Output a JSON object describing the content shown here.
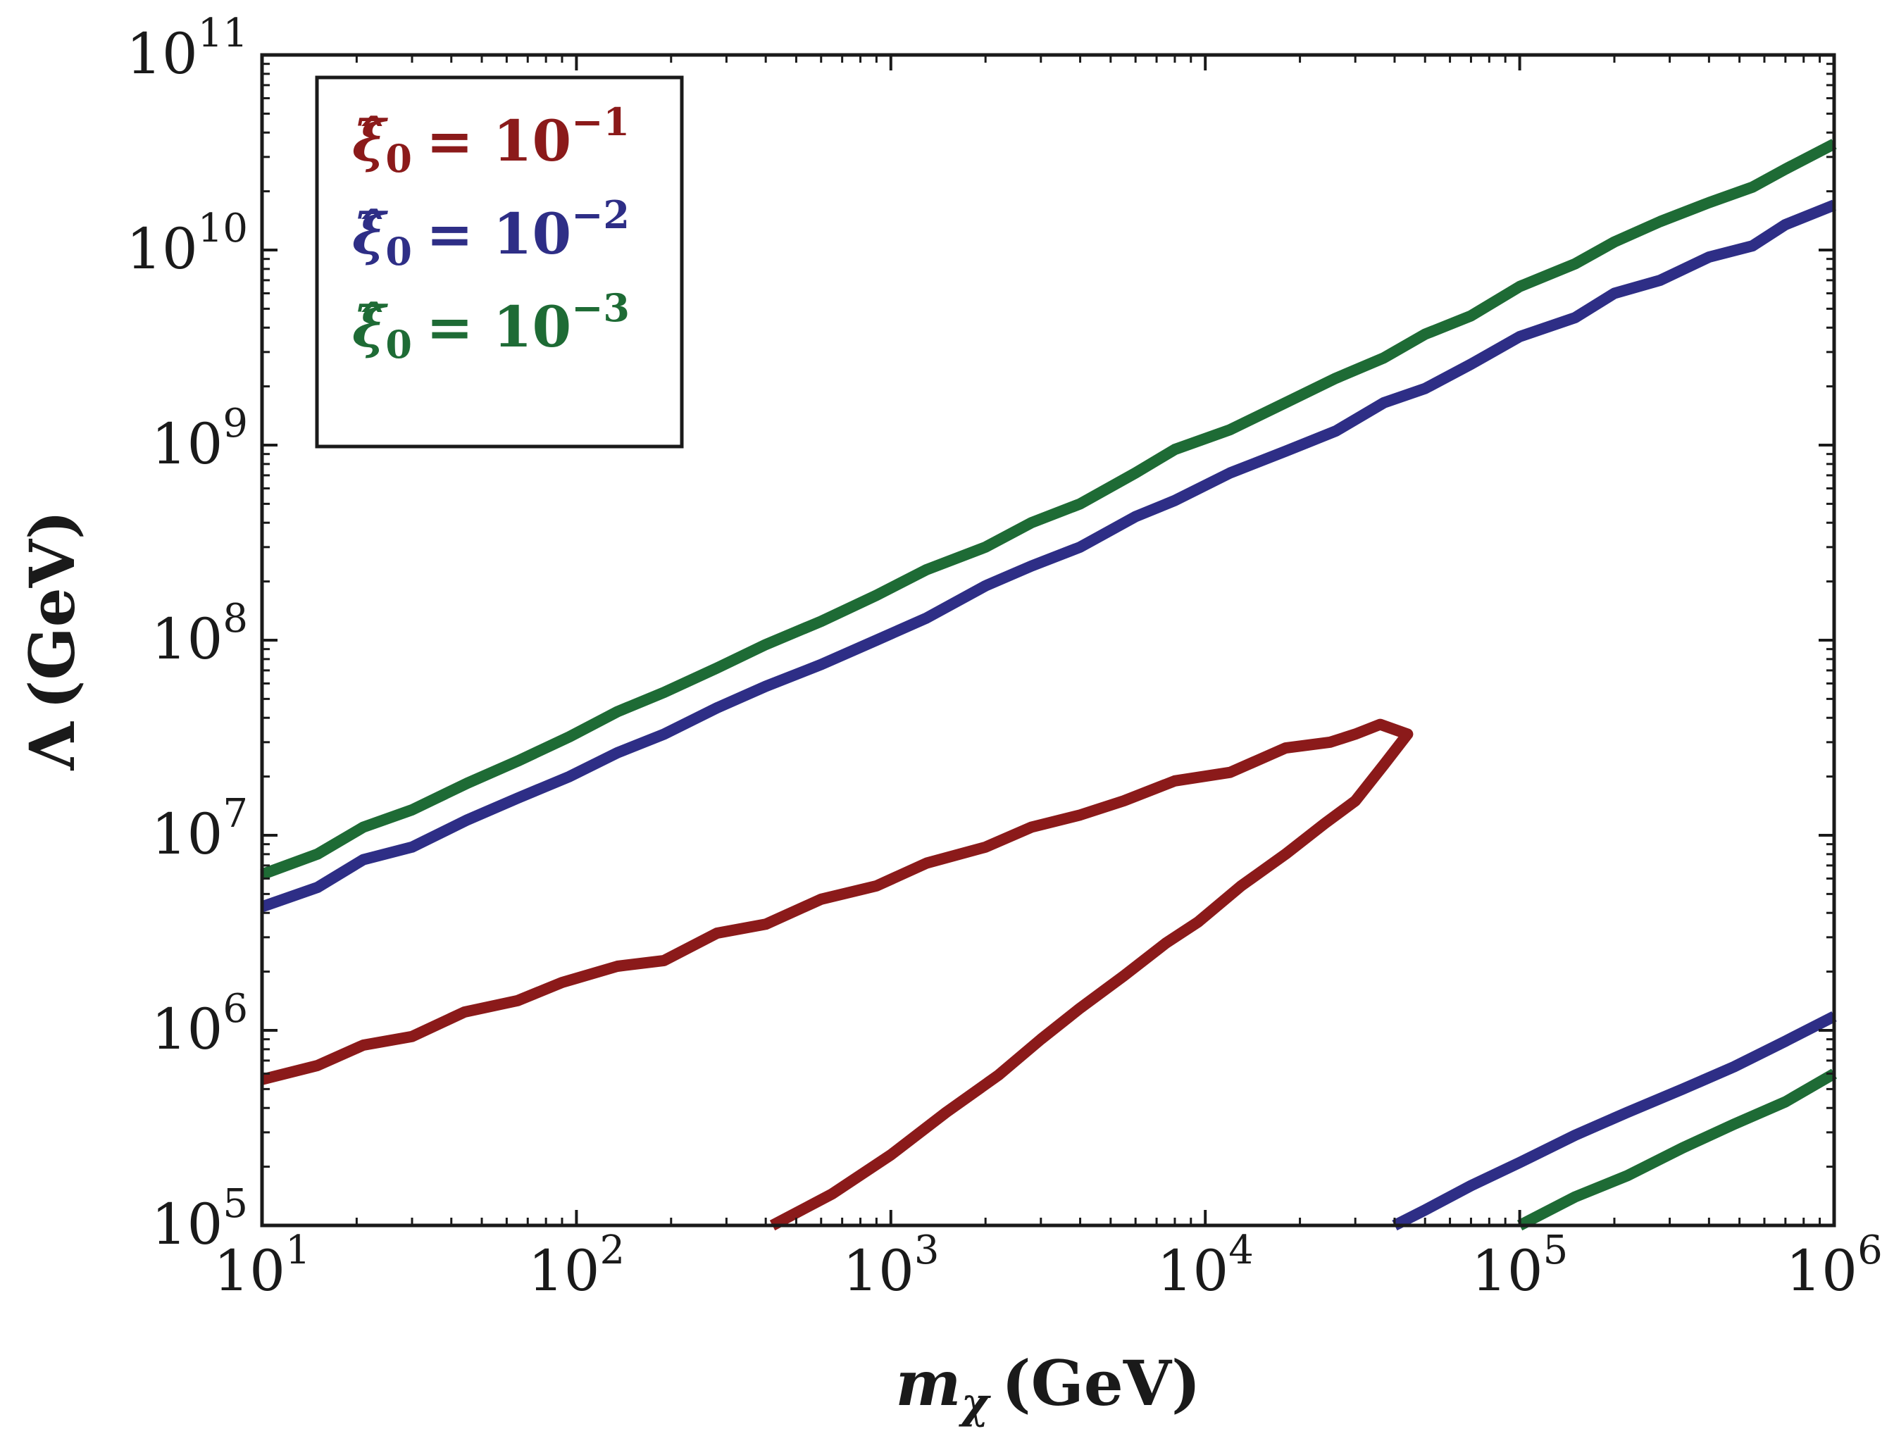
{
  "chart_data": {
    "type": "line",
    "xscale": "log",
    "yscale": "log",
    "xlim": [
      10,
      1000000
    ],
    "ylim": [
      100000,
      100000000000
    ],
    "xlabel": {
      "symbol": "m",
      "subscript": "χ",
      "unit": "(GeV)"
    },
    "ylabel": {
      "symbol": "Λ",
      "unit": "(GeV)"
    },
    "x_ticks": [
      {
        "value": 10,
        "base": "10",
        "exp": "1"
      },
      {
        "value": 100,
        "base": "10",
        "exp": "2"
      },
      {
        "value": 1000,
        "base": "10",
        "exp": "3"
      },
      {
        "value": 10000,
        "base": "10",
        "exp": "4"
      },
      {
        "value": 100000,
        "base": "10",
        "exp": "5"
      },
      {
        "value": 1000000,
        "base": "10",
        "exp": "6"
      }
    ],
    "y_ticks": [
      {
        "value": 100000,
        "base": "10",
        "exp": "5"
      },
      {
        "value": 1000000,
        "base": "10",
        "exp": "6"
      },
      {
        "value": 10000000,
        "base": "10",
        "exp": "7"
      },
      {
        "value": 100000000,
        "base": "10",
        "exp": "8"
      },
      {
        "value": 1000000000,
        "base": "10",
        "exp": "9"
      },
      {
        "value": 10000000000,
        "base": "10",
        "exp": "10"
      },
      {
        "value": 100000000000,
        "base": "10",
        "exp": "11"
      }
    ],
    "legend_position": "top-left",
    "series": [
      {
        "name": "xi0 = 1e-1",
        "legend": {
          "symbol": "ξ̂",
          "subscript": "0",
          "rhs": "= 10",
          "exp": "−1"
        },
        "color": "#8b1a1a",
        "segments": [
          [
            [
              10,
              560000
            ],
            [
              15,
              660000
            ],
            [
              21,
              840000
            ],
            [
              30,
              930000
            ],
            [
              44,
              1240000
            ],
            [
              65,
              1420000
            ],
            [
              90,
              1760000
            ],
            [
              135,
              2130000
            ],
            [
              190,
              2280000
            ],
            [
              280,
              3150000
            ],
            [
              400,
              3500000
            ],
            [
              600,
              4700000
            ],
            [
              900,
              5500000
            ],
            [
              1300,
              7200000
            ],
            [
              2000,
              8700000
            ],
            [
              2800,
              11000000
            ],
            [
              4000,
              12700000
            ],
            [
              5500,
              15000000
            ],
            [
              8000,
              19000000
            ],
            [
              12000,
              21000000
            ],
            [
              18000,
              28000000
            ],
            [
              25000,
              30000000
            ],
            [
              30000,
              33000000
            ],
            [
              36000,
              37000000
            ],
            [
              44000,
              33000000
            ],
            [
              37000,
              23000000
            ],
            [
              30000,
              15000000
            ],
            [
              24000,
              11500000
            ],
            [
              18000,
              8000000
            ],
            [
              13000,
              5500000
            ],
            [
              9500,
              3600000
            ],
            [
              7500,
              2800000
            ],
            [
              5500,
              1900000
            ],
            [
              4000,
              1300000
            ],
            [
              3000,
              900000
            ],
            [
              2200,
              590000
            ],
            [
              1500,
              380000
            ],
            [
              1000,
              230000
            ],
            [
              650,
              145000
            ],
            [
              420,
              100000
            ]
          ],
          []
        ]
      },
      {
        "name": "xi0 = 1e-2",
        "legend": {
          "symbol": "ξ̂",
          "subscript": "0",
          "rhs": "= 10",
          "exp": "−2"
        },
        "color": "#2e2e86",
        "segments": [
          [
            [
              10,
              4300000
            ],
            [
              15,
              5400000
            ],
            [
              21,
              7500000
            ],
            [
              30,
              8700000
            ],
            [
              45,
              12000000
            ],
            [
              65,
              15500000
            ],
            [
              95,
              20000000
            ],
            [
              135,
              26500000
            ],
            [
              190,
              33000000
            ],
            [
              280,
              45000000
            ],
            [
              400,
              58000000
            ],
            [
              600,
              75000000
            ],
            [
              900,
              100000000
            ],
            [
              1300,
              130000000
            ],
            [
              2000,
              190000000
            ],
            [
              2800,
              240000000
            ],
            [
              4000,
              300000000
            ],
            [
              6000,
              430000000
            ],
            [
              8000,
              520000000
            ],
            [
              12000,
              720000000
            ],
            [
              18000,
              930000000
            ],
            [
              26000,
              1180000000
            ],
            [
              37000,
              1650000000
            ],
            [
              50000,
              1950000000
            ],
            [
              70000,
              2600000000
            ],
            [
              100000,
              3600000000
            ],
            [
              150000,
              4500000000
            ],
            [
              200000,
              6000000000
            ],
            [
              280000,
              7000000000
            ],
            [
              400000,
              9200000000
            ],
            [
              550000,
              10500000000
            ],
            [
              700000,
              13500000000
            ],
            [
              1000000,
              17000000000
            ]
          ],
          [
            [
              40000,
              100000
            ],
            [
              50000,
              120000
            ],
            [
              70000,
              160000
            ],
            [
              100000,
              210000
            ],
            [
              150000,
              290000
            ],
            [
              220000,
              380000
            ],
            [
              330000,
              500000
            ],
            [
              480000,
              650000
            ],
            [
              700000,
              880000
            ],
            [
              1000000,
              1180000
            ]
          ]
        ]
      },
      {
        "name": "xi0 = 1e-3",
        "legend": {
          "symbol": "ξ̂",
          "subscript": "0",
          "rhs": "= 10",
          "exp": "−3"
        },
        "color": "#1e6b35",
        "segments": [
          [
            [
              10,
              6300000
            ],
            [
              15,
              8000000
            ],
            [
              21,
              11000000
            ],
            [
              30,
              13500000
            ],
            [
              45,
              18500000
            ],
            [
              65,
              24000000
            ],
            [
              95,
              32000000
            ],
            [
              135,
              43000000
            ],
            [
              190,
              54000000
            ],
            [
              280,
              72000000
            ],
            [
              400,
              95000000
            ],
            [
              600,
              125000000
            ],
            [
              900,
              170000000
            ],
            [
              1300,
              230000000
            ],
            [
              2000,
              300000000
            ],
            [
              2800,
              400000000
            ],
            [
              4000,
              500000000
            ],
            [
              6000,
              720000000
            ],
            [
              8000,
              950000000
            ],
            [
              12000,
              1200000000
            ],
            [
              18000,
              1650000000
            ],
            [
              26000,
              2200000000
            ],
            [
              37000,
              2800000000
            ],
            [
              50000,
              3700000000
            ],
            [
              70000,
              4600000000
            ],
            [
              100000,
              6500000000
            ],
            [
              150000,
              8500000000
            ],
            [
              200000,
              11000000000
            ],
            [
              280000,
              14000000000
            ],
            [
              400000,
              17500000000
            ],
            [
              550000,
              21000000000
            ],
            [
              700000,
              26000000000
            ],
            [
              1000000,
              35000000000
            ]
          ],
          [
            [
              100000,
              100000
            ],
            [
              150000,
              140000
            ],
            [
              220000,
              180000
            ],
            [
              330000,
              250000
            ],
            [
              480000,
              330000
            ],
            [
              700000,
              430000
            ],
            [
              1000000,
              600000
            ]
          ]
        ]
      }
    ]
  }
}
